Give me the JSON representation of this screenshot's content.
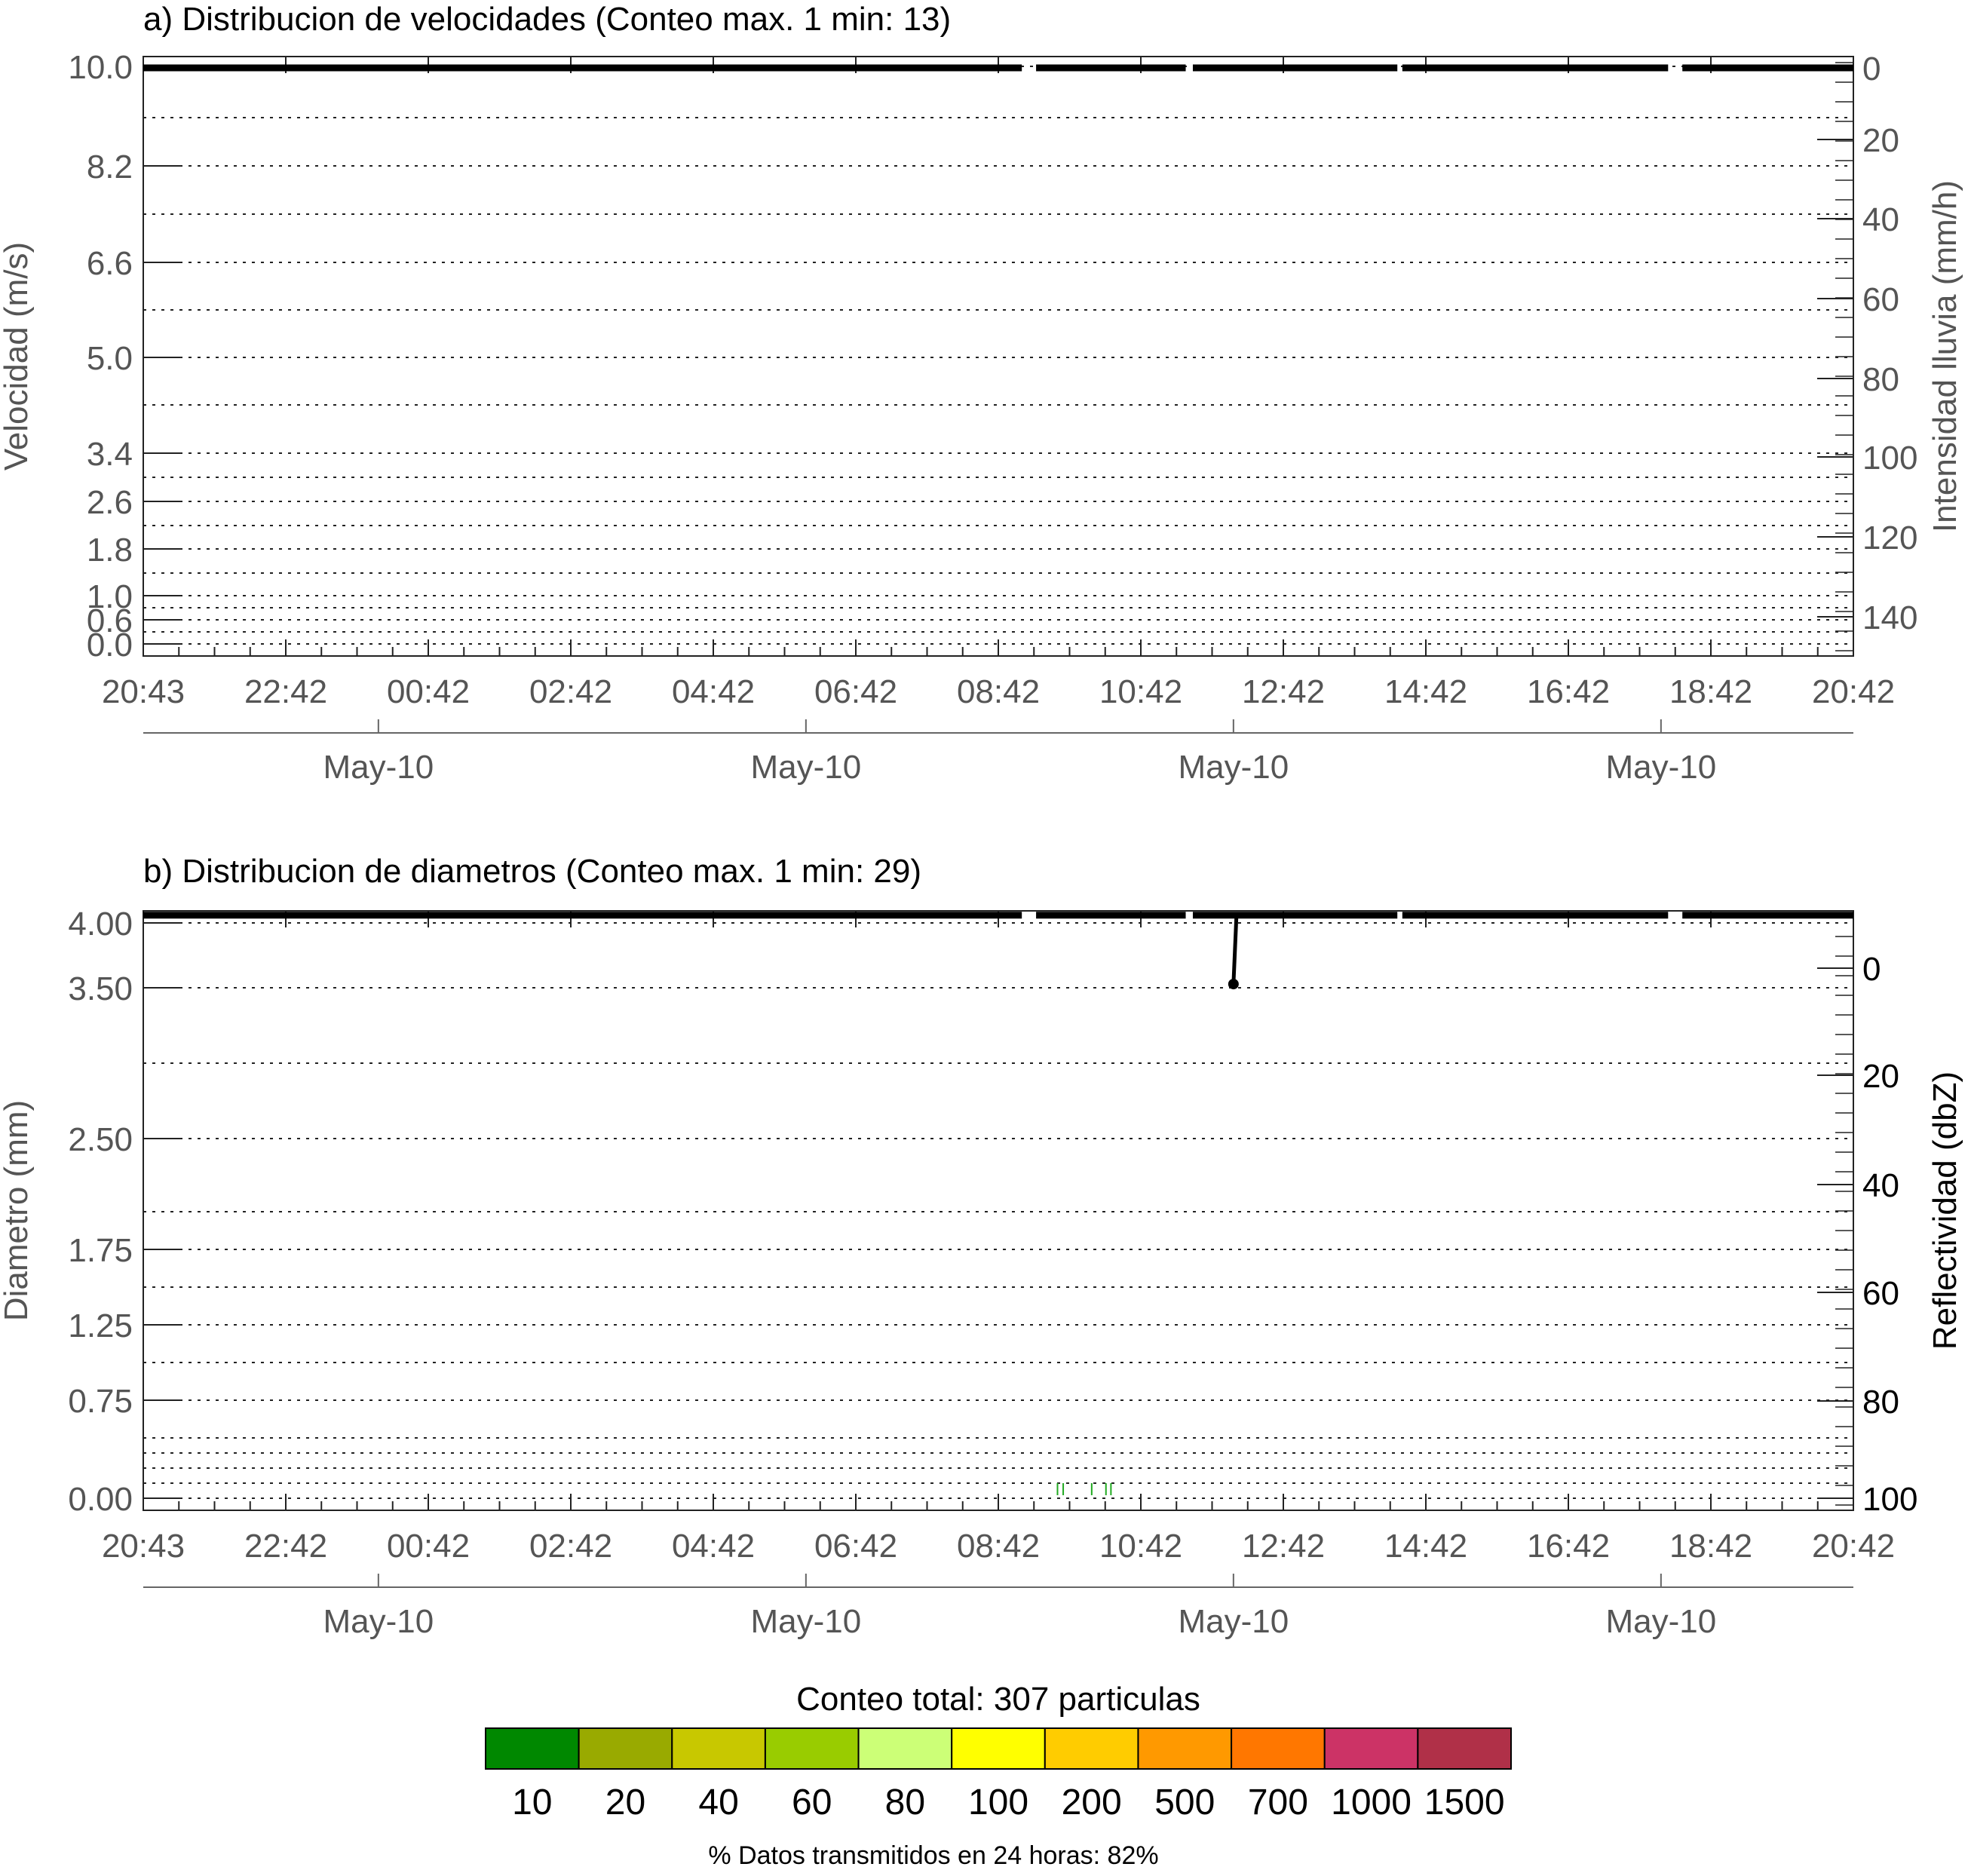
{
  "chart_data": [
    {
      "type": "heatmap",
      "title": "a) Distribucion de velocidades (Conteo max. 1 min: 13)",
      "ylabel": "Velocidad (m/s)",
      "y2label": "Intensidad lluvia (mm/h)",
      "x_tick_labels": [
        "20:43",
        "22:42",
        "00:42",
        "02:42",
        "04:42",
        "06:42",
        "08:42",
        "10:42",
        "12:42",
        "14:42",
        "16:42",
        "18:42",
        "20:42"
      ],
      "x_date_labels": [
        "May-10",
        "May-10",
        "May-10",
        "May-10"
      ],
      "y_tick_labels": [
        "10.0",
        "8.2",
        "6.6",
        "5.0",
        "3.4",
        "2.6",
        "1.8",
        "1.0",
        "0.6",
        "0.0"
      ],
      "y2_tick_labels": [
        "0",
        "20",
        "40",
        "60",
        "80",
        "100",
        "120",
        "140"
      ],
      "y2lim": [
        0,
        150
      ],
      "series": [
        {
          "segments": [
            [
              0,
              12.33
            ],
            [
              12.53,
              14.63
            ],
            [
              14.73,
              17.6
            ],
            [
              17.67,
              21.4
            ],
            [
              21.6,
              24
            ]
          ],
          "value": 0
        }
      ]
    },
    {
      "type": "heatmap",
      "title": "b) Distribucion de diametros (Conteo max. 1 min: 29)",
      "ylabel": "Diametro (mm)",
      "y2label": "Reflectividad (dbZ)",
      "x_tick_labels": [
        "20:43",
        "22:42",
        "00:42",
        "02:42",
        "04:42",
        "06:42",
        "08:42",
        "10:42",
        "12:42",
        "14:42",
        "16:42",
        "18:42",
        "20:42"
      ],
      "x_date_labels": [
        "May-10",
        "May-10",
        "May-10",
        "May-10"
      ],
      "y_tick_labels": [
        "4.00",
        "3.50",
        "2.50",
        "1.75",
        "1.25",
        "0.75",
        "0.00"
      ],
      "y2_tick_labels": [
        "0",
        "20",
        "40",
        "60",
        "80",
        "100"
      ],
      "y2lim": [
        -10,
        100
      ],
      "series": [
        {
          "segments": [
            [
              0,
              12.33
            ],
            [
              12.53,
              14.63
            ],
            [
              14.73,
              17.6
            ],
            [
              17.67,
              21.4
            ],
            [
              21.6,
              24
            ]
          ],
          "value": -10,
          "spike": {
            "x": 15.3,
            "value": 3
          }
        }
      ],
      "cells": [
        {
          "x": 12.82,
          "count": 10
        },
        {
          "x": 12.9,
          "count": 10
        },
        {
          "x": 13.3,
          "count": 10
        },
        {
          "x": 13.5,
          "count": 10
        },
        {
          "x": 13.57,
          "count": 10
        }
      ]
    }
  ],
  "colorbar": {
    "title": "Conteo total: 307 particulas",
    "labels": [
      "10",
      "20",
      "40",
      "60",
      "80",
      "100",
      "200",
      "500",
      "700",
      "1000",
      "1500"
    ],
    "colors": [
      "#008800",
      "#99aa00",
      "#c8c800",
      "#99cc00",
      "#ccff77",
      "#ffff00",
      "#ffcc00",
      "#ff9900",
      "#ff7700",
      "#cc3366",
      "#b03048"
    ]
  },
  "footer": "% Datos transmitidos en 24 horas: 82%"
}
